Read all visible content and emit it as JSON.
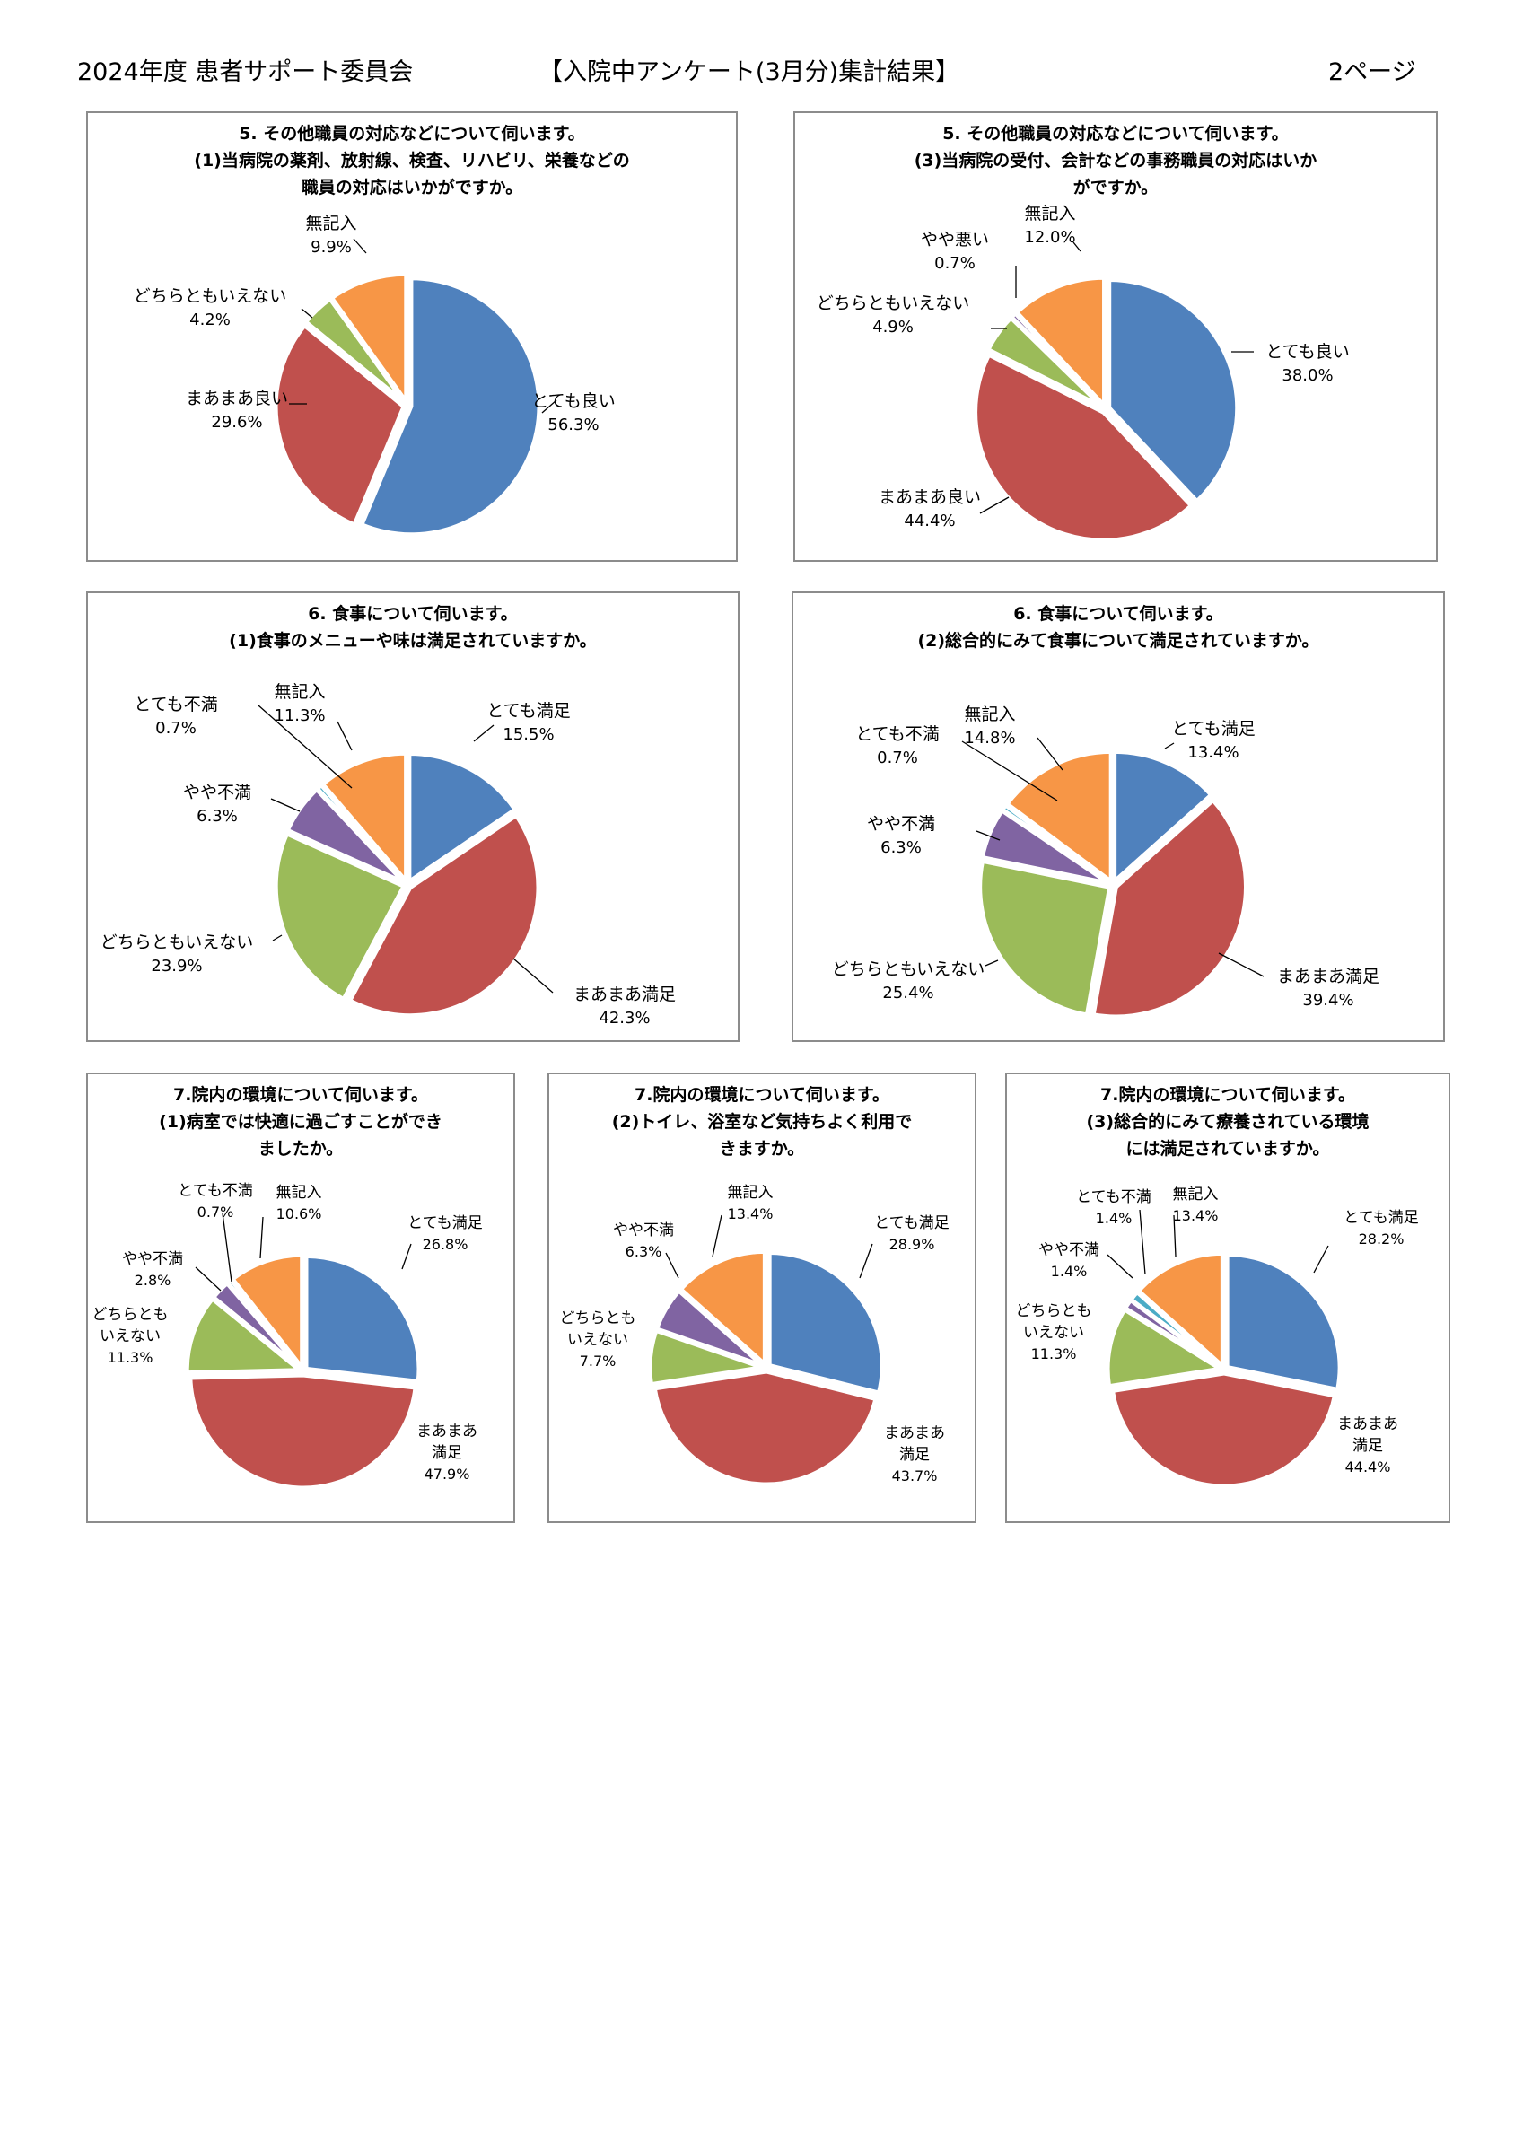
{
  "header": {
    "left": "2024年度 患者サポート委員会",
    "center": "【入院中アンケート(3月分)集計結果】",
    "right": "2ページ"
  },
  "colors": {
    "blue": "#4f81bd",
    "red": "#c0504d",
    "green": "#9bbb59",
    "purple": "#8064a2",
    "cyan": "#4bacc6",
    "orange": "#f79646"
  },
  "chart_data": [
    {
      "type": "pie",
      "title": [
        "5. その他職員の対応などについて伺います。",
        "(1)当病院の薬剤、放射線、検査、リハビリ、栄養などの",
        "職員の対応はいかがですか。"
      ],
      "slices": [
        {
          "label": "とても良い",
          "value": 56.3,
          "text": "56.3%",
          "color": "#4f81bd"
        },
        {
          "label": "まあまあ良い",
          "value": 29.6,
          "text": "29.6%",
          "color": "#c0504d"
        },
        {
          "label": "どちらともいえない",
          "value": 4.2,
          "text": "4.2%",
          "color": "#9bbb59"
        },
        {
          "label": "無記入",
          "value": 9.9,
          "text": "9.9%",
          "color": "#f79646"
        }
      ]
    },
    {
      "type": "pie",
      "title": [
        "5. その他職員の対応などについて伺います。",
        "(3)当病院の受付、会計などの事務職員の対応はいか",
        "がですか。"
      ],
      "slices": [
        {
          "label": "とても良い",
          "value": 38.0,
          "text": "38.0%",
          "color": "#4f81bd"
        },
        {
          "label": "まあまあ良い",
          "value": 44.4,
          "text": "44.4%",
          "color": "#c0504d"
        },
        {
          "label": "どちらともいえない",
          "value": 4.9,
          "text": "4.9%",
          "color": "#9bbb59"
        },
        {
          "label": "やや悪い",
          "value": 0.7,
          "text": "0.7%",
          "color": "#8064a2"
        },
        {
          "label": "無記入",
          "value": 12.0,
          "text": "12.0%",
          "color": "#f79646"
        }
      ]
    },
    {
      "type": "pie",
      "title": [
        "6. 食事について伺います。",
        "(1)食事のメニューや味は満足されていますか。"
      ],
      "slices": [
        {
          "label": "とても満足",
          "value": 15.5,
          "text": "15.5%",
          "color": "#4f81bd"
        },
        {
          "label": "まあまあ満足",
          "value": 42.3,
          "text": "42.3%",
          "color": "#c0504d"
        },
        {
          "label": "どちらともいえない",
          "value": 23.9,
          "text": "23.9%",
          "color": "#9bbb59"
        },
        {
          "label": "やや不満",
          "value": 6.3,
          "text": "6.3%",
          "color": "#8064a2"
        },
        {
          "label": "とても不満",
          "value": 0.7,
          "text": "0.7%",
          "color": "#4bacc6"
        },
        {
          "label": "無記入",
          "value": 11.3,
          "text": "11.3%",
          "color": "#f79646"
        }
      ]
    },
    {
      "type": "pie",
      "title": [
        "6. 食事について伺います。",
        "(2)総合的にみて食事について満足されていますか。"
      ],
      "slices": [
        {
          "label": "とても満足",
          "value": 13.4,
          "text": "13.4%",
          "color": "#4f81bd"
        },
        {
          "label": "まあまあ満足",
          "value": 39.4,
          "text": "39.4%",
          "color": "#c0504d"
        },
        {
          "label": "どちらともいえない",
          "value": 25.4,
          "text": "25.4%",
          "color": "#9bbb59"
        },
        {
          "label": "やや不満",
          "value": 6.3,
          "text": "6.3%",
          "color": "#8064a2"
        },
        {
          "label": "とても不満",
          "value": 0.7,
          "text": "0.7%",
          "color": "#4bacc6"
        },
        {
          "label": "無記入",
          "value": 14.8,
          "text": "14.8%",
          "color": "#f79646"
        }
      ]
    },
    {
      "type": "pie",
      "title": [
        "7.院内の環境について伺います。",
        "(1)病室では快適に過ごすことができ",
        "ましたか。"
      ],
      "slices": [
        {
          "label": "とても満足",
          "value": 26.8,
          "text": "26.8%",
          "color": "#4f81bd"
        },
        {
          "label": "まあまあ満足",
          "value": 47.9,
          "text": "47.9%",
          "color": "#c0504d"
        },
        {
          "label": "どちらともいえない",
          "value": 11.3,
          "text": "11.3%",
          "color": "#9bbb59"
        },
        {
          "label": "やや不満",
          "value": 2.8,
          "text": "2.8%",
          "color": "#8064a2"
        },
        {
          "label": "とても不満",
          "value": 0.7,
          "text": "0.7%",
          "color": "#4bacc6"
        },
        {
          "label": "無記入",
          "value": 10.6,
          "text": "10.6%",
          "color": "#f79646"
        }
      ]
    },
    {
      "type": "pie",
      "title": [
        "7.院内の環境について伺います。",
        "(2)トイレ、浴室など気持ちよく利用で",
        "きますか。"
      ],
      "slices": [
        {
          "label": "とても満足",
          "value": 28.9,
          "text": "28.9%",
          "color": "#4f81bd"
        },
        {
          "label": "まあまあ満足",
          "value": 43.7,
          "text": "43.7%",
          "color": "#c0504d"
        },
        {
          "label": "どちらともいえない",
          "value": 7.7,
          "text": "7.7%",
          "color": "#9bbb59"
        },
        {
          "label": "やや不満",
          "value": 6.3,
          "text": "6.3%",
          "color": "#8064a2"
        },
        {
          "label": "無記入",
          "value": 13.4,
          "text": "13.4%",
          "color": "#f79646"
        }
      ]
    },
    {
      "type": "pie",
      "title": [
        "7.院内の環境について伺います。",
        "(3)総合的にみて療養されている環境",
        "には満足されていますか。"
      ],
      "slices": [
        {
          "label": "とても満足",
          "value": 28.2,
          "text": "28.2%",
          "color": "#4f81bd"
        },
        {
          "label": "まあまあ満足",
          "value": 44.4,
          "text": "44.4%",
          "color": "#c0504d"
        },
        {
          "label": "どちらともいえない",
          "value": 11.3,
          "text": "11.3%",
          "color": "#9bbb59"
        },
        {
          "label": "やや不満",
          "value": 1.4,
          "text": "1.4%",
          "color": "#8064a2"
        },
        {
          "label": "とても不満",
          "value": 1.4,
          "text": "1.4%",
          "color": "#4bacc6"
        },
        {
          "label": "無記入",
          "value": 13.4,
          "text": "13.4%",
          "color": "#f79646"
        }
      ]
    }
  ]
}
